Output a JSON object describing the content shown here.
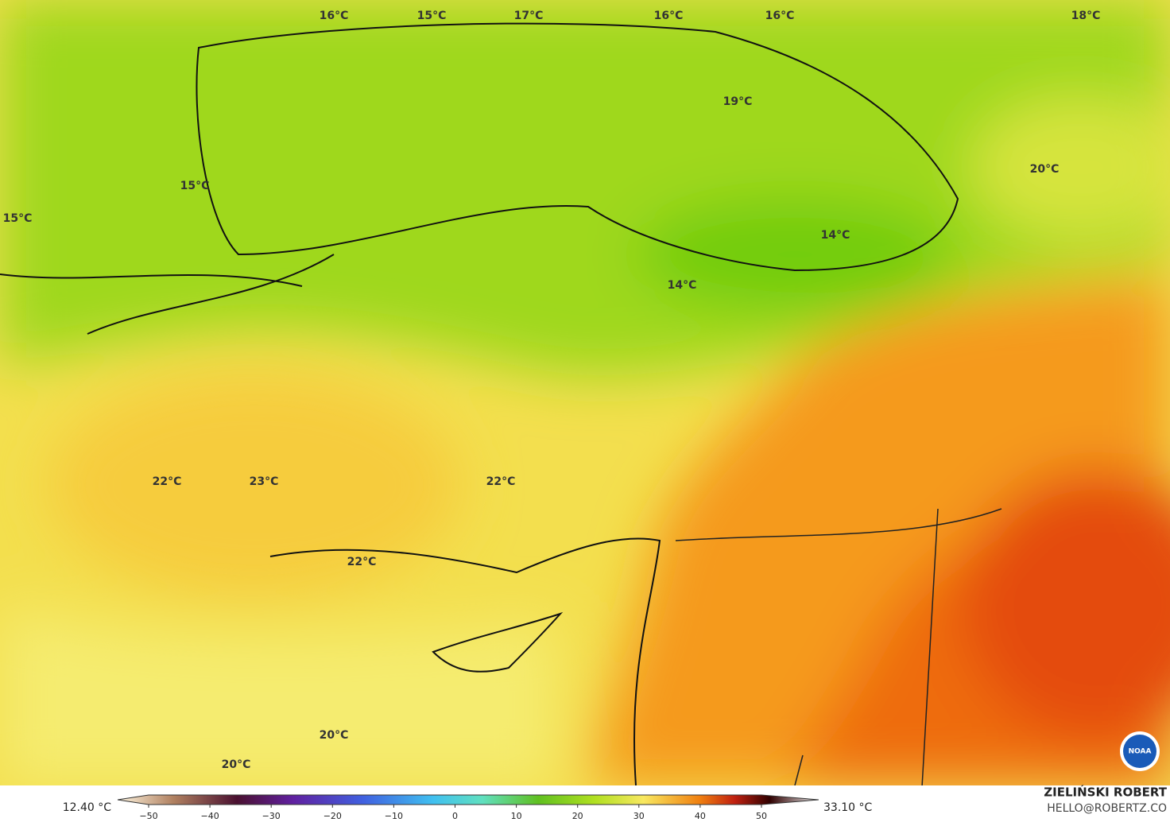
{
  "map": {
    "labels": [
      "16°C",
      "15°C",
      "17°C",
      "16°C",
      "16°C",
      "18°C",
      "19°C",
      "20°C",
      "15°C",
      "15°C",
      "14°C",
      "14°C",
      "22°C",
      "23°C",
      "22°C",
      "22°C",
      "20°C",
      "20°C"
    ]
  },
  "legend": {
    "min_label": "12.40 °C",
    "max_label": "33.10 °C",
    "ticks": [
      {
        "value": -50,
        "label": "−50"
      },
      {
        "value": -40,
        "label": "−40"
      },
      {
        "value": -30,
        "label": "−30"
      },
      {
        "value": -20,
        "label": "−20"
      },
      {
        "value": -10,
        "label": "−10"
      },
      0,
      10,
      20,
      30,
      40,
      50
    ]
  },
  "credit": {
    "author": "ZIELIŃSKI ROBERT",
    "email": "HELLO@ROBERTZ.CO",
    "logo": "NOAA"
  }
}
